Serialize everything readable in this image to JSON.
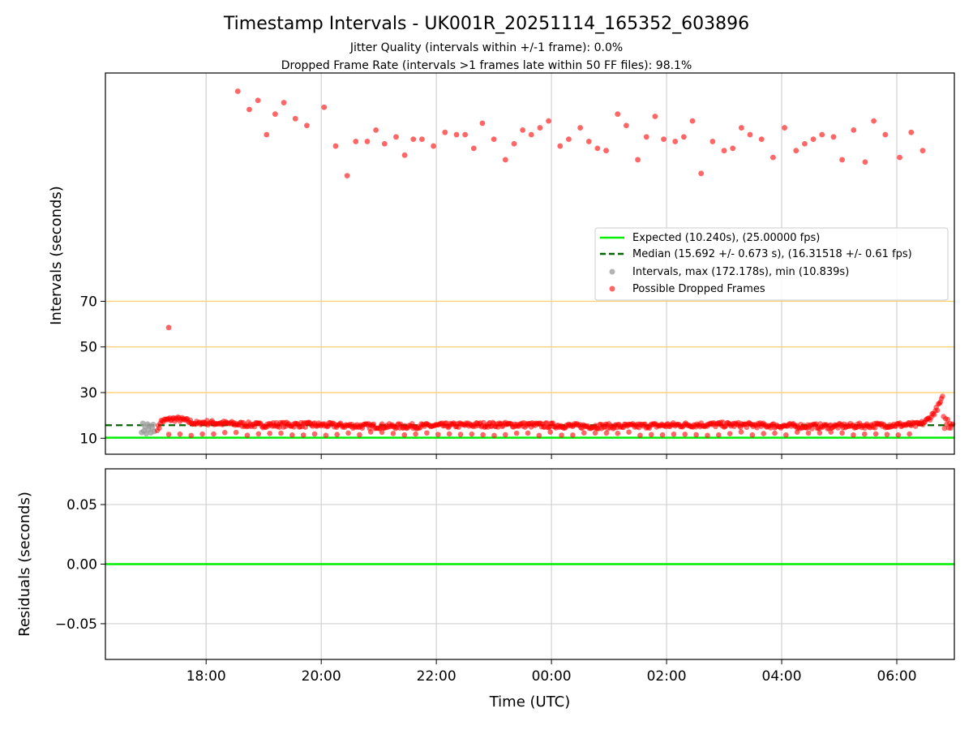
{
  "chart_data": [
    {
      "type": "scatter",
      "title": "Timestamp Intervals - UK001R_20251114_165352_603896",
      "subtitle_lines": [
        "Jitter Quality (intervals within +/-1 frame): 0.0%",
        "Dropped Frame Rate (intervals >1 frames late within 50 FF files): 98.1%"
      ],
      "xlabel": "",
      "ylabel": "Intervals (seconds)",
      "xlim_hours": [
        16.25,
        31.0
      ],
      "ylim_display": [
        3,
        170
      ],
      "y_ticks": [
        10,
        30,
        50,
        70
      ],
      "y_tick_labels": [
        "10",
        "30",
        "50",
        "70"
      ],
      "x_ticks_hours": [
        18,
        20,
        22,
        24,
        26,
        28,
        30
      ],
      "x_tick_labels": [
        "18:00",
        "20:00",
        "22:00",
        "00:00",
        "02:00",
        "04:00",
        "06:00"
      ],
      "threshold_lines": [
        30,
        50,
        70
      ],
      "expected_value": 10.24,
      "median_value": 15.692,
      "grid": "x",
      "legend_position": "right",
      "legend": [
        "Expected (10.240s), (25.00000 fps)",
        "Median (15.692 +/- 0.673 s), (16.31518 +/- 0.61 fps)",
        "Intervals, max (172.178s), min (10.839s)",
        "Possible Dropped Frames"
      ],
      "colors": {
        "expected": "#00ee00",
        "median": "#006400",
        "intervals": "#999999",
        "dropped": "#ff0000",
        "threshold": "#ffd27a",
        "grid": "#d0d0d0"
      },
      "series": [
        {
          "name": "Intervals",
          "points": [
            [
              16.88,
              12.5
            ],
            [
              16.9,
              16.5
            ],
            [
              16.92,
              13.2
            ],
            [
              16.94,
              15.0
            ],
            [
              16.96,
              12.0
            ],
            [
              16.98,
              16.2
            ],
            [
              17.0,
              13.8
            ],
            [
              17.02,
              15.5
            ],
            [
              17.04,
              12.4
            ],
            [
              17.06,
              14.6
            ],
            [
              17.08,
              16.0
            ],
            [
              17.1,
              13.0
            ]
          ]
        },
        {
          "name": "Possible Dropped Frames (upper band, displayed values)",
          "points": [
            [
              18.55,
              162
            ],
            [
              18.75,
              154
            ],
            [
              18.9,
              158
            ],
            [
              19.05,
              143
            ],
            [
              19.2,
              152
            ],
            [
              19.35,
              157
            ],
            [
              19.55,
              150
            ],
            [
              19.75,
              147
            ],
            [
              20.05,
              155
            ],
            [
              20.25,
              138
            ],
            [
              20.45,
              125
            ],
            [
              20.6,
              140
            ],
            [
              20.8,
              140
            ],
            [
              20.95,
              145
            ],
            [
              21.1,
              139
            ],
            [
              21.3,
              142
            ],
            [
              21.45,
              134
            ],
            [
              21.6,
              141
            ],
            [
              21.75,
              141
            ],
            [
              21.95,
              138
            ],
            [
              22.15,
              144
            ],
            [
              22.35,
              143
            ],
            [
              22.5,
              143
            ],
            [
              22.65,
              137
            ],
            [
              22.8,
              148
            ],
            [
              23.0,
              141
            ],
            [
              23.2,
              132
            ],
            [
              23.35,
              139
            ],
            [
              23.5,
              145
            ],
            [
              23.65,
              143
            ],
            [
              23.8,
              146
            ],
            [
              23.95,
              149
            ],
            [
              24.15,
              138
            ],
            [
              24.3,
              141
            ],
            [
              24.5,
              146
            ],
            [
              24.65,
              140
            ],
            [
              24.8,
              137
            ],
            [
              24.95,
              136
            ],
            [
              25.15,
              152
            ],
            [
              25.3,
              147
            ],
            [
              25.5,
              132
            ],
            [
              25.65,
              142
            ],
            [
              25.8,
              151
            ],
            [
              25.95,
              141
            ],
            [
              26.15,
              140
            ],
            [
              26.3,
              142
            ],
            [
              26.45,
              149
            ],
            [
              26.6,
              126
            ],
            [
              26.8,
              140
            ],
            [
              27.0,
              136
            ],
            [
              27.15,
              137
            ],
            [
              27.3,
              146
            ],
            [
              27.45,
              143
            ],
            [
              27.65,
              141
            ],
            [
              27.85,
              133
            ],
            [
              28.05,
              146
            ],
            [
              28.25,
              136
            ],
            [
              28.4,
              139
            ],
            [
              28.55,
              141
            ],
            [
              28.7,
              143
            ],
            [
              28.9,
              142
            ],
            [
              29.05,
              132
            ],
            [
              29.25,
              145
            ],
            [
              29.45,
              131
            ],
            [
              29.6,
              149
            ],
            [
              29.8,
              143
            ],
            [
              30.05,
              133
            ],
            [
              30.25,
              144
            ],
            [
              30.45,
              136
            ]
          ]
        },
        {
          "name": "Possible Dropped Frames (outlier)",
          "points": [
            [
              17.35,
              58.5
            ]
          ]
        }
      ]
    },
    {
      "type": "line",
      "title": "",
      "xlabel": "Time (UTC)",
      "ylabel": "Residuals (seconds)",
      "xlim_hours": [
        16.25,
        31.0
      ],
      "ylim": [
        -0.08,
        0.08
      ],
      "y_ticks": [
        0.05,
        0.0,
        -0.05
      ],
      "y_tick_labels": [
        "0.05",
        "0.00",
        "−0.05"
      ],
      "x_ticks_hours": [
        18,
        20,
        22,
        24,
        26,
        28,
        30
      ],
      "x_tick_labels": [
        "18:00",
        "20:00",
        "22:00",
        "00:00",
        "02:00",
        "04:00",
        "06:00"
      ],
      "grid": "both",
      "series": [
        {
          "name": "Residuals",
          "values": [
            0.0,
            0.0
          ]
        }
      ]
    }
  ]
}
